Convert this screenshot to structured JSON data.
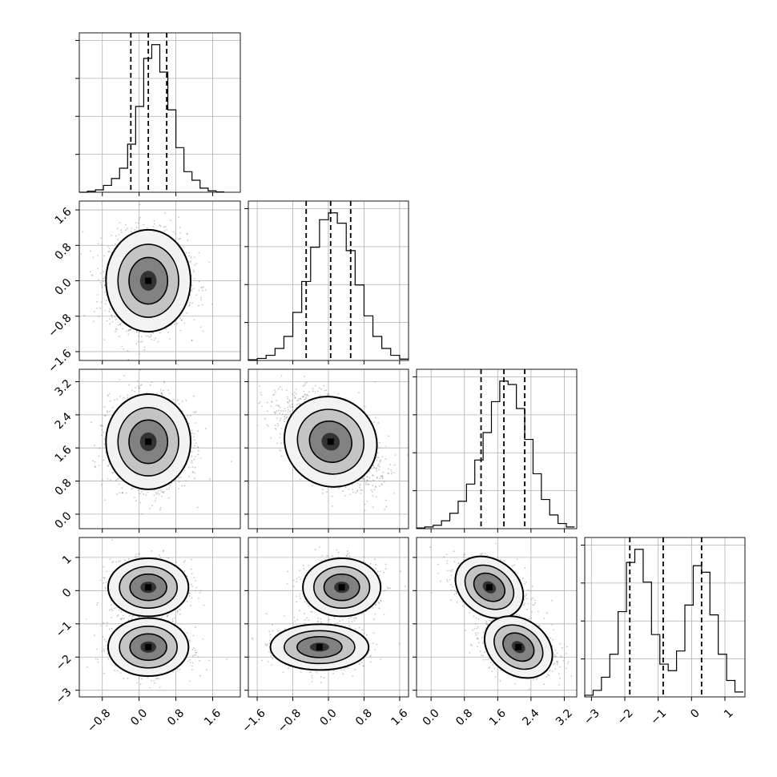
{
  "chart_data": {
    "type": "corner",
    "grid": true,
    "quantiles_shown": [
      0.16,
      0.5,
      0.84
    ],
    "colors": {
      "line": "#000000",
      "grid": "#b0b0b0",
      "scatter": "#808080",
      "density_dark": "#1a1a1a"
    },
    "parameters": [
      {
        "range": [
          -1.3,
          2.2
        ],
        "ticks": [
          -0.8,
          0.0,
          0.8,
          1.6
        ],
        "tick_labels": [
          "−0.8",
          "0.0",
          "0.8",
          "1.6"
        ],
        "quantile_lines": [
          -0.18,
          0.2,
          0.6
        ],
        "hist": [
          {
            "x": -1.3,
            "c": 0.0
          },
          {
            "x": -1.125,
            "c": 0.3
          },
          {
            "x": -0.95,
            "c": 0.7
          },
          {
            "x": -0.775,
            "c": 2.0
          },
          {
            "x": -0.6,
            "c": 4.0
          },
          {
            "x": -0.425,
            "c": 7.0
          },
          {
            "x": -0.25,
            "c": 14.0
          },
          {
            "x": -0.075,
            "c": 25.0
          },
          {
            "x": 0.1,
            "c": 39.0
          },
          {
            "x": 0.275,
            "c": 43.0
          },
          {
            "x": 0.45,
            "c": 35.0
          },
          {
            "x": 0.625,
            "c": 24.0
          },
          {
            "x": 0.8,
            "c": 13.0
          },
          {
            "x": 0.975,
            "c": 6.0
          },
          {
            "x": 1.15,
            "c": 3.5
          },
          {
            "x": 1.325,
            "c": 1.2
          },
          {
            "x": 1.5,
            "c": 0.4
          },
          {
            "x": 1.675,
            "c": 0.1
          }
        ]
      },
      {
        "range": [
          -1.8,
          1.8
        ],
        "ticks": [
          -1.6,
          -0.8,
          0.0,
          0.8,
          1.6
        ],
        "tick_labels": [
          "−1.6",
          "−0.8",
          "0.0",
          "0.8",
          "1.6"
        ],
        "quantile_lines": [
          -0.5,
          0.05,
          0.5
        ],
        "hist": [
          {
            "x": -1.8,
            "c": 0.2
          },
          {
            "x": -1.6,
            "c": 0.6
          },
          {
            "x": -1.4,
            "c": 1.5
          },
          {
            "x": -1.2,
            "c": 3.5
          },
          {
            "x": -1.0,
            "c": 7.0
          },
          {
            "x": -0.8,
            "c": 14.0
          },
          {
            "x": -0.6,
            "c": 23.0
          },
          {
            "x": -0.4,
            "c": 33.0
          },
          {
            "x": -0.2,
            "c": 41.0
          },
          {
            "x": 0.0,
            "c": 43.0
          },
          {
            "x": 0.2,
            "c": 40.0
          },
          {
            "x": 0.4,
            "c": 32.0
          },
          {
            "x": 0.6,
            "c": 22.0
          },
          {
            "x": 0.8,
            "c": 13.0
          },
          {
            "x": 1.0,
            "c": 7.0
          },
          {
            "x": 1.2,
            "c": 3.5
          },
          {
            "x": 1.4,
            "c": 1.5
          },
          {
            "x": 1.6,
            "c": 0.4
          }
        ]
      },
      {
        "range": [
          -0.35,
          3.5
        ],
        "ticks": [
          0.0,
          0.8,
          1.6,
          2.4,
          3.2
        ],
        "tick_labels": [
          "0.0",
          "0.8",
          "1.6",
          "2.4",
          "3.2"
        ],
        "quantile_lines": [
          1.2,
          1.75,
          2.25
        ],
        "hist": [
          {
            "x": -0.35,
            "c": 0.2
          },
          {
            "x": -0.15,
            "c": 0.5
          },
          {
            "x": 0.05,
            "c": 1.0
          },
          {
            "x": 0.25,
            "c": 2.3
          },
          {
            "x": 0.45,
            "c": 4.5
          },
          {
            "x": 0.65,
            "c": 8.0
          },
          {
            "x": 0.85,
            "c": 13.0
          },
          {
            "x": 1.05,
            "c": 20.0
          },
          {
            "x": 1.25,
            "c": 28.0
          },
          {
            "x": 1.45,
            "c": 37.0
          },
          {
            "x": 1.65,
            "c": 43.0
          },
          {
            "x": 1.85,
            "c": 42.0
          },
          {
            "x": 2.05,
            "c": 35.0
          },
          {
            "x": 2.25,
            "c": 26.0
          },
          {
            "x": 2.45,
            "c": 16.0
          },
          {
            "x": 2.65,
            "c": 8.5
          },
          {
            "x": 2.85,
            "c": 4.0
          },
          {
            "x": 3.05,
            "c": 1.5
          },
          {
            "x": 3.25,
            "c": 0.5
          }
        ]
      },
      {
        "range": [
          -3.2,
          1.6
        ],
        "ticks": [
          -3,
          -2,
          -1,
          0,
          1
        ],
        "tick_labels": [
          "−3",
          "−2",
          "−1",
          "0",
          "1"
        ],
        "quantile_lines": [
          -1.85,
          -0.85,
          0.3
        ],
        "hist": [
          {
            "x": -3.2,
            "c": 0.5
          },
          {
            "x": -2.95,
            "c": 2.0
          },
          {
            "x": -2.7,
            "c": 6.0
          },
          {
            "x": -2.45,
            "c": 13.0
          },
          {
            "x": -2.2,
            "c": 26.0
          },
          {
            "x": -1.95,
            "c": 41.0
          },
          {
            "x": -1.7,
            "c": 45.0
          },
          {
            "x": -1.45,
            "c": 35.0
          },
          {
            "x": -1.2,
            "c": 19.0
          },
          {
            "x": -0.95,
            "c": 10.0
          },
          {
            "x": -0.7,
            "c": 8.0
          },
          {
            "x": -0.45,
            "c": 14.0
          },
          {
            "x": -0.2,
            "c": 28.0
          },
          {
            "x": 0.05,
            "c": 40.0
          },
          {
            "x": 0.3,
            "c": 38.0
          },
          {
            "x": 0.55,
            "c": 25.0
          },
          {
            "x": 0.8,
            "c": 13.0
          },
          {
            "x": 1.05,
            "c": 5.0
          },
          {
            "x": 1.3,
            "c": 1.5
          }
        ]
      }
    ],
    "panels_2d": [
      {
        "x_param": 0,
        "y_param": 1,
        "centers": [
          [
            0.2,
            0.0
          ]
        ],
        "spread": [
          [
            0.4,
            0.5
          ]
        ],
        "rho": 0.0
      },
      {
        "x_param": 0,
        "y_param": 2,
        "centers": [
          [
            0.2,
            1.75
          ]
        ],
        "spread": [
          [
            0.4,
            0.5
          ]
        ],
        "rho": 0.0
      },
      {
        "x_param": 1,
        "y_param": 2,
        "centers": [
          [
            0.05,
            1.75
          ]
        ],
        "spread": [
          [
            0.5,
            0.5
          ]
        ],
        "rho": -0.5
      },
      {
        "x_param": 0,
        "y_param": 3,
        "centers": [
          [
            0.2,
            0.1
          ],
          [
            0.2,
            -1.7
          ]
        ],
        "spread": [
          [
            0.38,
            0.38
          ],
          [
            0.38,
            0.38
          ]
        ],
        "rho": 0.0
      },
      {
        "x_param": 1,
        "y_param": 3,
        "centers": [
          [
            0.3,
            0.1
          ],
          [
            -0.2,
            -1.7
          ]
        ],
        "spread": [
          [
            0.38,
            0.38
          ],
          [
            0.48,
            0.3
          ]
        ],
        "rho": 0.0
      },
      {
        "x_param": 2,
        "y_param": 3,
        "centers": [
          [
            1.4,
            0.1
          ],
          [
            2.1,
            -1.7
          ]
        ],
        "spread": [
          [
            0.4,
            0.38
          ],
          [
            0.4,
            0.38
          ]
        ],
        "rho": -0.3
      }
    ]
  }
}
